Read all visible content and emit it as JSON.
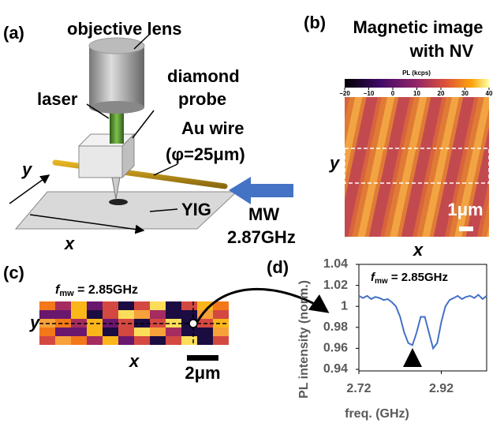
{
  "panel_a": {
    "label": "(a)",
    "objective_lens": "objective lens",
    "laser": "laser",
    "diamond_probe": [
      "diamond",
      "probe"
    ],
    "au_wire": [
      "Au wire",
      "(φ=25μm)"
    ],
    "y_axis": "y",
    "x_axis": "x",
    "yig": "YIG",
    "mw": [
      "MW",
      "2.87GHz"
    ]
  },
  "panel_b": {
    "label": "(b)",
    "title": [
      "Magnetic image",
      "with NV"
    ],
    "colorbar": {
      "label": "PL (kcps)",
      "lim": [
        -20,
        40
      ],
      "ticks": [
        {
          "value": -20,
          "label": "−20"
        },
        {
          "value": -10,
          "label": "−10"
        },
        0,
        10,
        20,
        30,
        40
      ]
    },
    "y_axis": "y",
    "x_axis": "x",
    "scale_bar": "1μm"
  },
  "panel_c": {
    "label": "(c)",
    "annotation": {
      "f": "f",
      "sub": "mw",
      "rest": " = 2.85GHz"
    },
    "y_axis": "y",
    "x_axis": "x",
    "scale_bar": "2μm"
  },
  "panel_d": {
    "label": "(d)"
  },
  "chart_data": {
    "type": "line",
    "annotation": {
      "f": "f",
      "sub": "mw",
      "rest": " = 2.85GHz"
    },
    "ylabel": "PL intensity (norm.)",
    "xlabel": "freq. (GHz)",
    "x": [
      2.72,
      2.73,
      2.74,
      2.75,
      2.76,
      2.77,
      2.78,
      2.79,
      2.8,
      2.81,
      2.82,
      2.83,
      2.84,
      2.85,
      2.86,
      2.87,
      2.88,
      2.89,
      2.9,
      2.91,
      2.92,
      2.93,
      2.94,
      2.95,
      2.96,
      2.97,
      2.98,
      2.99,
      3.0,
      3.01,
      3.02,
      3.03
    ],
    "values": [
      1.01,
      1.008,
      1.01,
      1.007,
      1.009,
      1.008,
      1.006,
      1.007,
      1.004,
      1.0,
      0.99,
      0.975,
      0.965,
      0.963,
      0.975,
      0.99,
      0.99,
      0.975,
      0.96,
      0.965,
      0.985,
      1.0,
      1.006,
      1.008,
      1.01,
      1.007,
      1.009,
      1.01,
      1.008,
      1.011,
      1.007,
      1.01
    ],
    "color": "#4472c4",
    "xlim": [
      2.72,
      3.03
    ],
    "xticks": [
      2.72,
      2.92
    ],
    "ylim": [
      0.94,
      1.04
    ],
    "yticks": [
      0.94,
      0.96,
      0.98,
      1,
      1.02,
      1.04
    ]
  }
}
